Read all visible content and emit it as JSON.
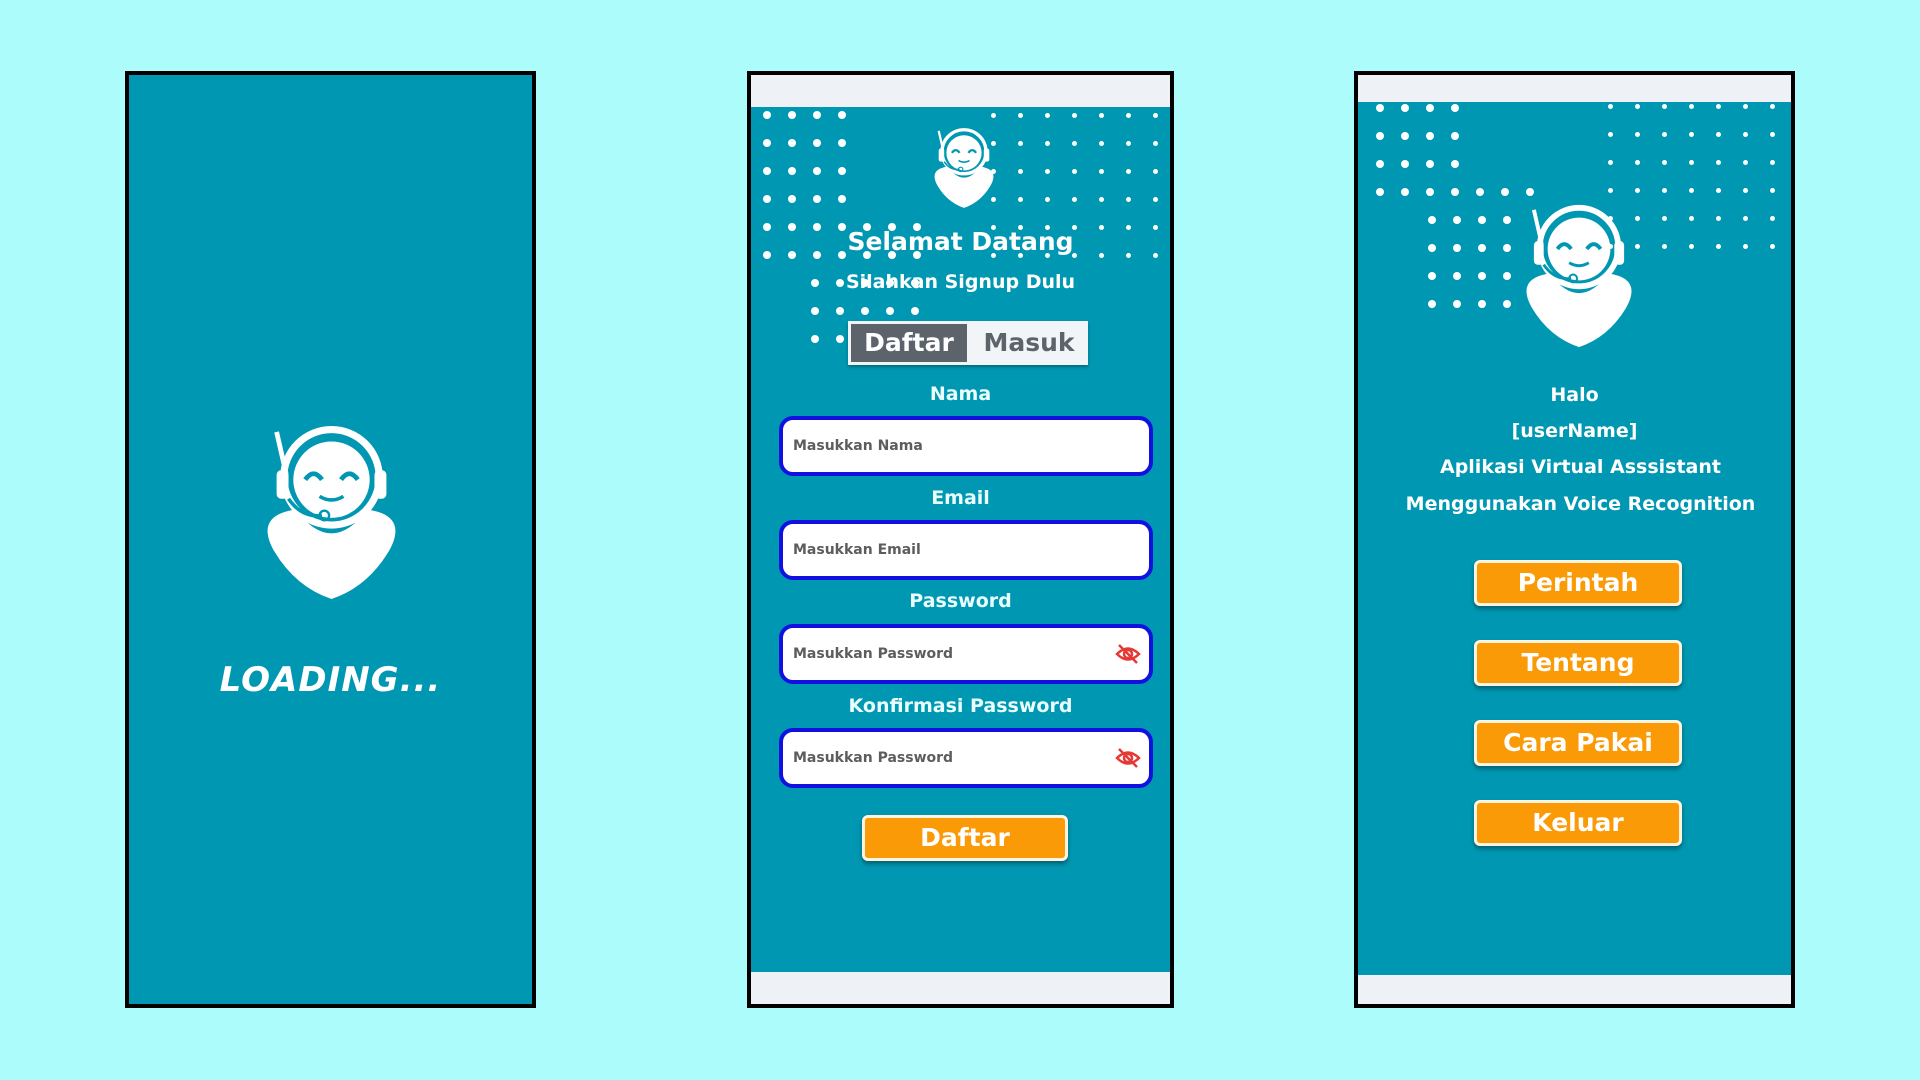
{
  "loading_screen": {
    "loading_text": "LOADING..."
  },
  "signup_screen": {
    "title": "Selamat Datang",
    "subtitle": "Silahkan Signup Dulu",
    "tabs": [
      {
        "label": "Daftar",
        "active": true
      },
      {
        "label": "Masuk",
        "active": false
      }
    ],
    "fields": [
      {
        "label": "Nama",
        "placeholder": "Masukkan Nama",
        "icon": null
      },
      {
        "label": "Email",
        "placeholder": "Masukkan Email",
        "icon": null
      },
      {
        "label": "Password",
        "placeholder": "Masukkan Password",
        "icon": "eye-off-icon"
      },
      {
        "label": "Konfirmasi Password",
        "placeholder": "Masukkan Password",
        "icon": "eye-off-icon"
      }
    ],
    "submit_label": "Daftar"
  },
  "home_screen": {
    "greeting": "Halo",
    "username": "[userName]",
    "line1": "Aplikasi Virtual Asssistant",
    "line2": "Menggunakan Voice Recognition",
    "buttons": [
      {
        "label": "Perintah"
      },
      {
        "label": "Tentang"
      },
      {
        "label": "Cara Pakai"
      },
      {
        "label": "Keluar"
      }
    ]
  },
  "colors": {
    "background": "#adfcfc",
    "app_bg": "#0097b2",
    "button": "#fb9a07",
    "input_border": "#1010e0",
    "eye_icon": "#e53935"
  }
}
